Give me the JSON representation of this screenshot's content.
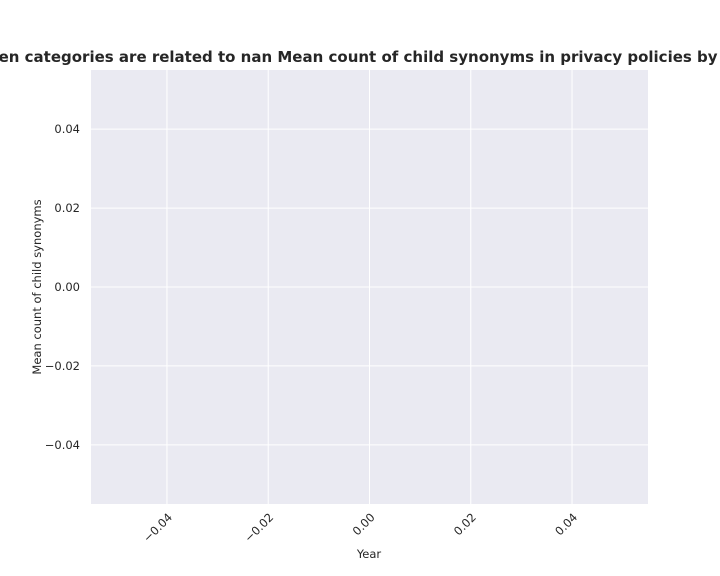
{
  "chart_data": {
    "type": "line",
    "title": "when categories are related to nan Mean count of child synonyms in privacy policies by Year",
    "xlabel": "Year",
    "ylabel": "Mean count of child synonyms",
    "xlim": [
      -0.055,
      0.055
    ],
    "ylim": [
      -0.055,
      0.055
    ],
    "x_ticks": [
      -0.04,
      -0.02,
      0.0,
      0.02,
      0.04
    ],
    "x_tick_labels": [
      "−0.04",
      "−0.02",
      "0.00",
      "0.02",
      "0.04"
    ],
    "y_ticks": [
      -0.04,
      -0.02,
      0.0,
      0.02,
      0.04
    ],
    "y_tick_labels": [
      "−0.04",
      "−0.02",
      "0.00",
      "0.02",
      "0.04"
    ],
    "x_tick_rotation_deg": 45,
    "grid": true,
    "series": [],
    "colors": {
      "plot_background": "#eaeaf2",
      "grid": "#ffffff",
      "text": "#262626"
    }
  }
}
